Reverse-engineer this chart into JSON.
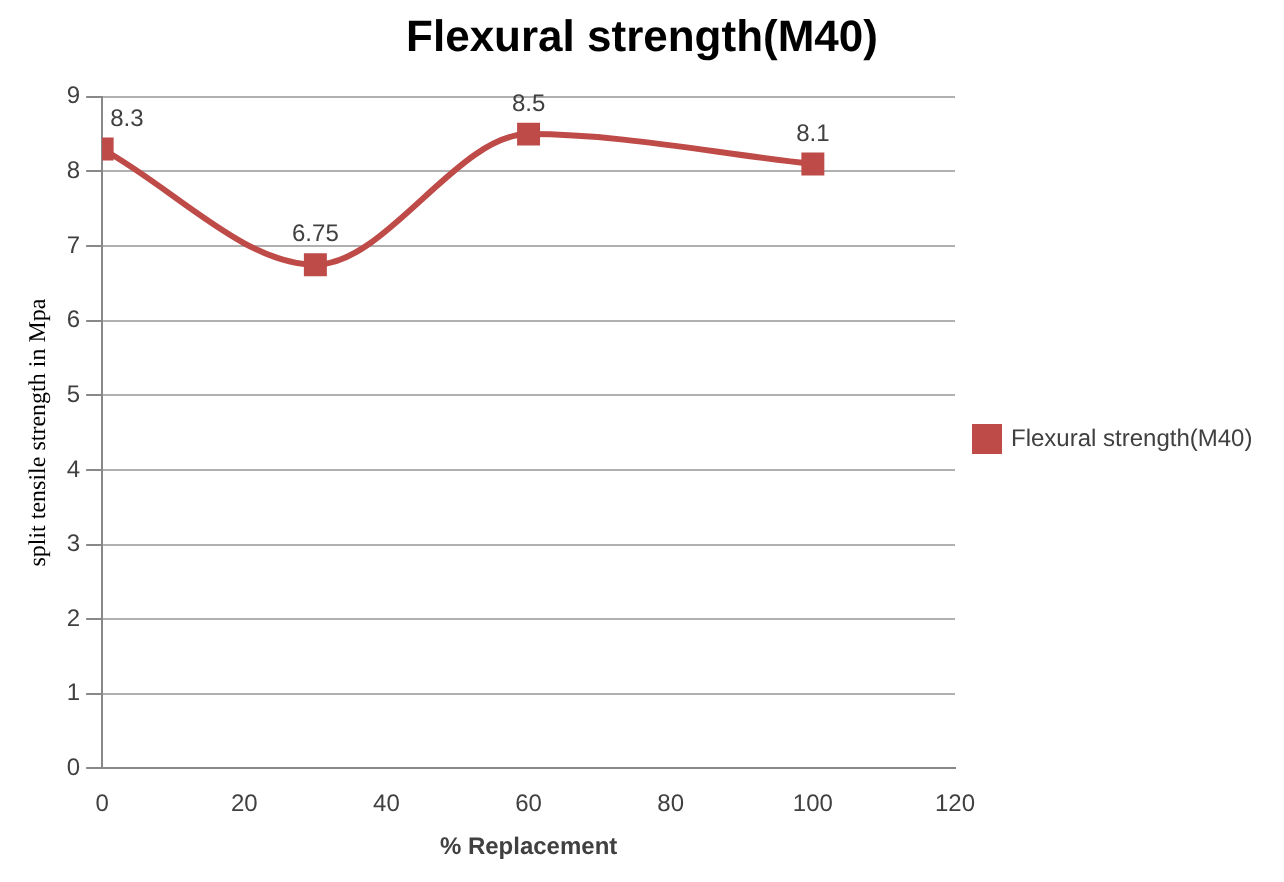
{
  "chart_data": {
    "type": "line",
    "title": "Flexural strength(M40)",
    "xlabel": "% Replacement",
    "ylabel": "split tensile strength in Mpa",
    "x": [
      0,
      30,
      60,
      100
    ],
    "series": [
      {
        "name": "Flexural strength(M40)",
        "color": "#be4b48",
        "values": [
          8.3,
          6.75,
          8.5,
          8.1
        ]
      }
    ],
    "xlim": [
      0,
      120
    ],
    "xticks": [
      0,
      20,
      40,
      60,
      80,
      100,
      120
    ],
    "ylim": [
      0,
      9
    ],
    "yticks": [
      0,
      1,
      2,
      3,
      4,
      5,
      6,
      7,
      8,
      9
    ],
    "grid": "y",
    "legend": "right",
    "marker": "square",
    "line_style": "solid",
    "data_labels": true
  }
}
